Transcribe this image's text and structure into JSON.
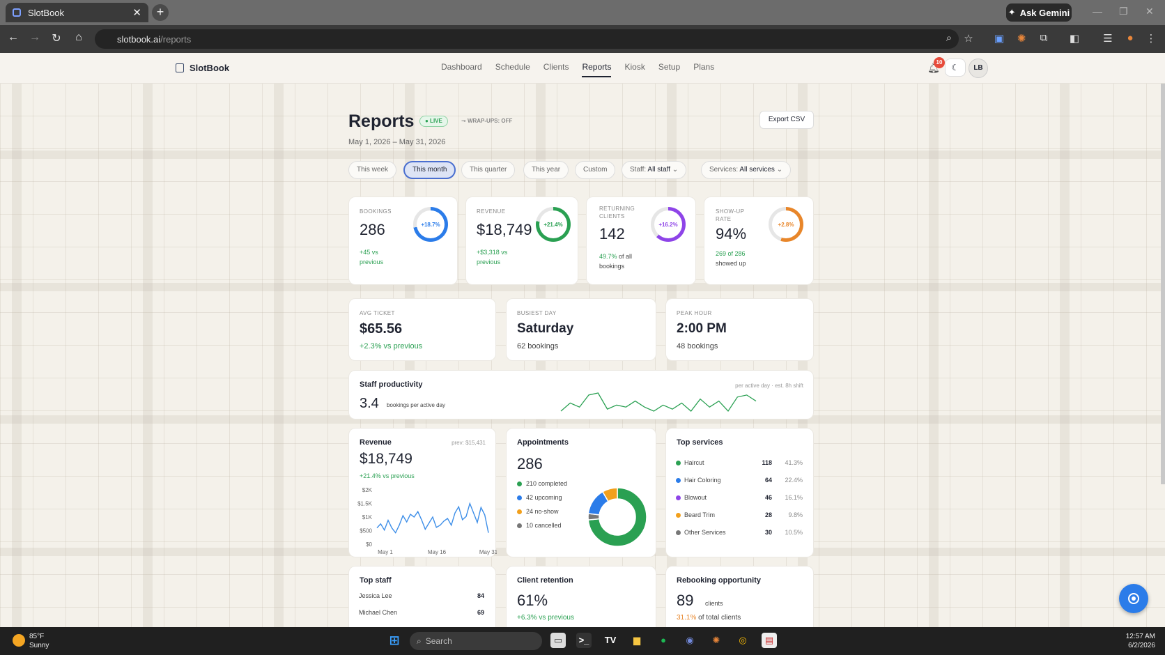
{
  "browser": {
    "tab_title": "SlotBook",
    "url_host": "slotbook.ai",
    "url_path": "/reports",
    "ask_gemini": "Ask Gemini"
  },
  "app": {
    "logo": "SlotBook",
    "nav": [
      "Dashboard",
      "Schedule",
      "Clients",
      "Reports",
      "Kiosk",
      "Setup",
      "Plans"
    ],
    "active_nav": "Reports",
    "notifications": "10",
    "avatar": "LB"
  },
  "header": {
    "title": "Reports",
    "live": "● LIVE",
    "wrapups": "WRAP-UPS: OFF",
    "range": "May 1, 2026 – May 31, 2026",
    "export": "Export CSV"
  },
  "filters": {
    "periods": [
      "This week",
      "This month",
      "This quarter",
      "This year",
      "Custom"
    ],
    "active_period": "This month",
    "staff_label": "Staff:",
    "staff_value": "All staff",
    "services_label": "Services:",
    "services_value": "All services"
  },
  "kpis": [
    {
      "label": "BOOKINGS",
      "value": "286",
      "change": "+18.7%",
      "sub1": "+45 vs",
      "sub2": "previous",
      "color": "#2b7ce9",
      "pct": 0.72
    },
    {
      "label": "REVENUE",
      "value": "$18,749",
      "change": "+21.4%",
      "sub1": "+$3,318 vs",
      "sub2": "previous",
      "color": "#2aa052",
      "pct": 0.78
    },
    {
      "label1": "RETURNING",
      "label2": "CLIENTS",
      "value": "142",
      "change": "+16.2%",
      "sub_hl": "49.7%",
      "sub1": "of all",
      "sub2": "bookings",
      "color": "#8e44e8",
      "pct": 0.62
    },
    {
      "label1": "SHOW-UP",
      "label2": "RATE",
      "value": "94%",
      "change": "+2.8%",
      "sub_hl": "269 of 286",
      "sub2": "showed up",
      "color": "#e8862a",
      "pct": 0.55
    }
  ],
  "stats": [
    {
      "label": "AVG TICKET",
      "value": "$65.56",
      "sub": "+2.3% vs previous"
    },
    {
      "label": "BUSIEST DAY",
      "value": "Saturday",
      "sub": "62 bookings"
    },
    {
      "label": "PEAK HOUR",
      "value": "2:00 PM",
      "sub": "48 bookings"
    }
  ],
  "productivity": {
    "title": "Staff productivity",
    "value": "3.4",
    "unit": "bookings per active day",
    "note": "per active day · est. 8h shift",
    "spark": [
      3.0,
      3.4,
      3.2,
      3.8,
      3.9,
      3.1,
      3.3,
      3.2,
      3.5,
      3.2,
      3.0,
      3.3,
      3.1,
      3.4,
      3.0,
      3.6,
      3.2,
      3.5,
      3.0,
      3.7,
      3.8,
      3.5
    ]
  },
  "revenue_chart": {
    "title": "Revenue",
    "prev": "prev: $15,431",
    "value": "$18,749",
    "change": "+21.4% vs previous",
    "y_ticks": [
      "$2K",
      "$1.5K",
      "$1K",
      "$500",
      "$0"
    ],
    "x_ticks": [
      "May 1",
      "May 16",
      "May 31"
    ],
    "ylim": [
      0,
      2000
    ],
    "values": [
      600,
      750,
      520,
      880,
      600,
      420,
      700,
      1050,
      820,
      1100,
      1000,
      1200,
      900,
      550,
      780,
      1000,
      620,
      700,
      850,
      950,
      700,
      1150,
      1380,
      900,
      1020,
      1500,
      1150,
      800,
      1350,
      1080,
      420
    ]
  },
  "appointments": {
    "title": "Appointments",
    "total": "286",
    "legend": [
      {
        "label": "210 completed",
        "value": 210,
        "color": "#2aa052"
      },
      {
        "label": "42 upcoming",
        "value": 42,
        "color": "#2b7ce9"
      },
      {
        "label": "24 no-show",
        "value": 24,
        "color": "#f2a01c"
      },
      {
        "label": "10 cancelled",
        "value": 10,
        "color": "#777777"
      }
    ]
  },
  "top_services": {
    "title": "Top services",
    "items": [
      {
        "name": "Haircut",
        "count": "118",
        "pct": "41.3%",
        "color": "#2aa052"
      },
      {
        "name": "Hair Coloring",
        "count": "64",
        "pct": "22.4%",
        "color": "#2b7ce9"
      },
      {
        "name": "Blowout",
        "count": "46",
        "pct": "16.1%",
        "color": "#8e44e8"
      },
      {
        "name": "Beard Trim",
        "count": "28",
        "pct": "9.8%",
        "color": "#f2a01c"
      },
      {
        "name": "Other Services",
        "count": "30",
        "pct": "10.5%",
        "color": "#777777"
      }
    ]
  },
  "top_staff": {
    "title": "Top staff",
    "items": [
      {
        "name": "Jessica Lee",
        "count": "84"
      },
      {
        "name": "Michael Chen",
        "count": "69"
      }
    ]
  },
  "retention": {
    "title": "Client retention",
    "value": "61%",
    "change": "+6.3% vs previous"
  },
  "rebooking": {
    "title": "Rebooking opportunity",
    "value": "89",
    "unit": "clients",
    "pct": "31.1%",
    "pct_sub": "of total clients"
  },
  "taskbar": {
    "temp": "85°F",
    "weather": "Sunny",
    "search": "Search",
    "time": "12:57 AM",
    "date": "6/2/2026"
  }
}
